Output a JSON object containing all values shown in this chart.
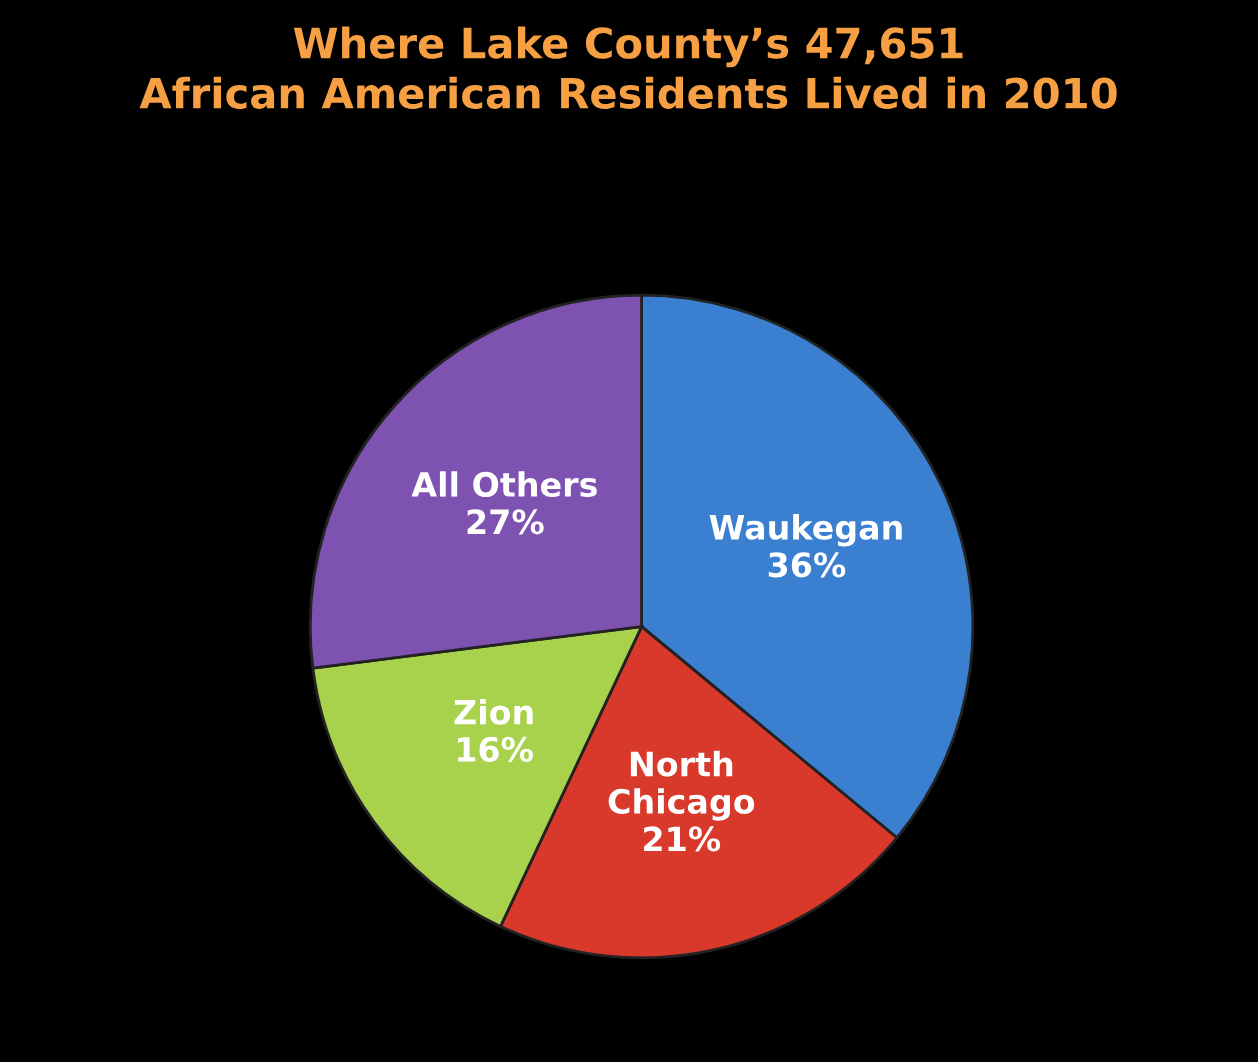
{
  "chart_data": {
    "type": "pie",
    "title": "Where Lake County’s 47,651\nAfrican American Residents Lived in 2010",
    "categories": [
      "Waukegan",
      "North\nChicago",
      "Zion",
      "All Others"
    ],
    "values": [
      36,
      21,
      16,
      27
    ],
    "value_labels": [
      "36%",
      "21%",
      "16%",
      "27%"
    ],
    "colors": [
      "#3b7fd1",
      "#d8392b",
      "#a8d14c",
      "#7d52b0"
    ]
  }
}
